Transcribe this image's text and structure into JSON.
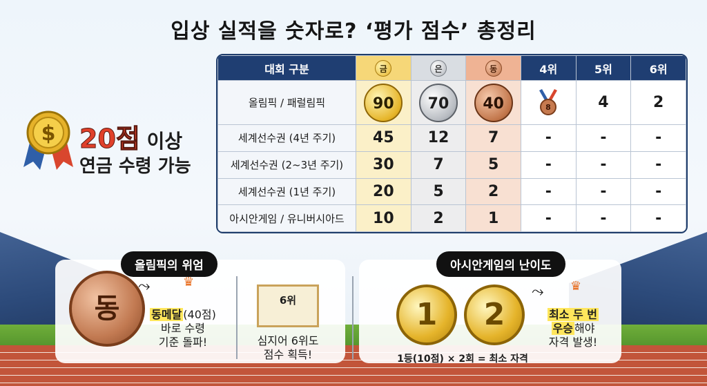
{
  "title": "입상 실적을 숫자로? ‘평가 점수’ 총정리",
  "badge": {
    "icon": "dollar-medal-icon",
    "score": "20점",
    "line1_suffix": "이상",
    "line2": "연금 수령 가능"
  },
  "table": {
    "headers": [
      "대회 구분",
      "금",
      "은",
      "동",
      "4위",
      "5위",
      "6위"
    ],
    "rows": [
      {
        "label": "올림픽 / 패럴림픽",
        "cells": [
          "90",
          "70",
          "40",
          "8",
          "4",
          "2"
        ]
      },
      {
        "label": "세계선수권 (4년 주기)",
        "cells": [
          "45",
          "12",
          "7",
          "-",
          "-",
          "-"
        ]
      },
      {
        "label": "세계선수권 (2~3년 주기)",
        "cells": [
          "30",
          "7",
          "5",
          "-",
          "-",
          "-"
        ]
      },
      {
        "label": "세계선수권 (1년 주기)",
        "cells": [
          "20",
          "5",
          "2",
          "-",
          "-",
          "-"
        ]
      },
      {
        "label": "아시안게임 / 유니버시아드",
        "cells": [
          "10",
          "2",
          "1",
          "-",
          "-",
          "-"
        ]
      }
    ]
  },
  "olympic": {
    "pill": "올림픽의 위엄",
    "medal_label": "동",
    "bronze_strong": "동메달",
    "bronze_points": "(40점)",
    "bronze_line2": "바로 수령",
    "bronze_line3": "기준 돌파!",
    "cert_label": "6위",
    "cert_line1": "심지어 6위도",
    "cert_line2": "점수 획득!"
  },
  "asian": {
    "pill": "아시안게임의 난이도",
    "medal1": "1",
    "medal2": "2",
    "formula": "1등(10점) × 2회 = 최소 자격",
    "note_line1": "최소 두 번",
    "note_line2_strong": "우승",
    "note_line2_rest": "해야",
    "note_line3": "자격 발생!"
  }
}
